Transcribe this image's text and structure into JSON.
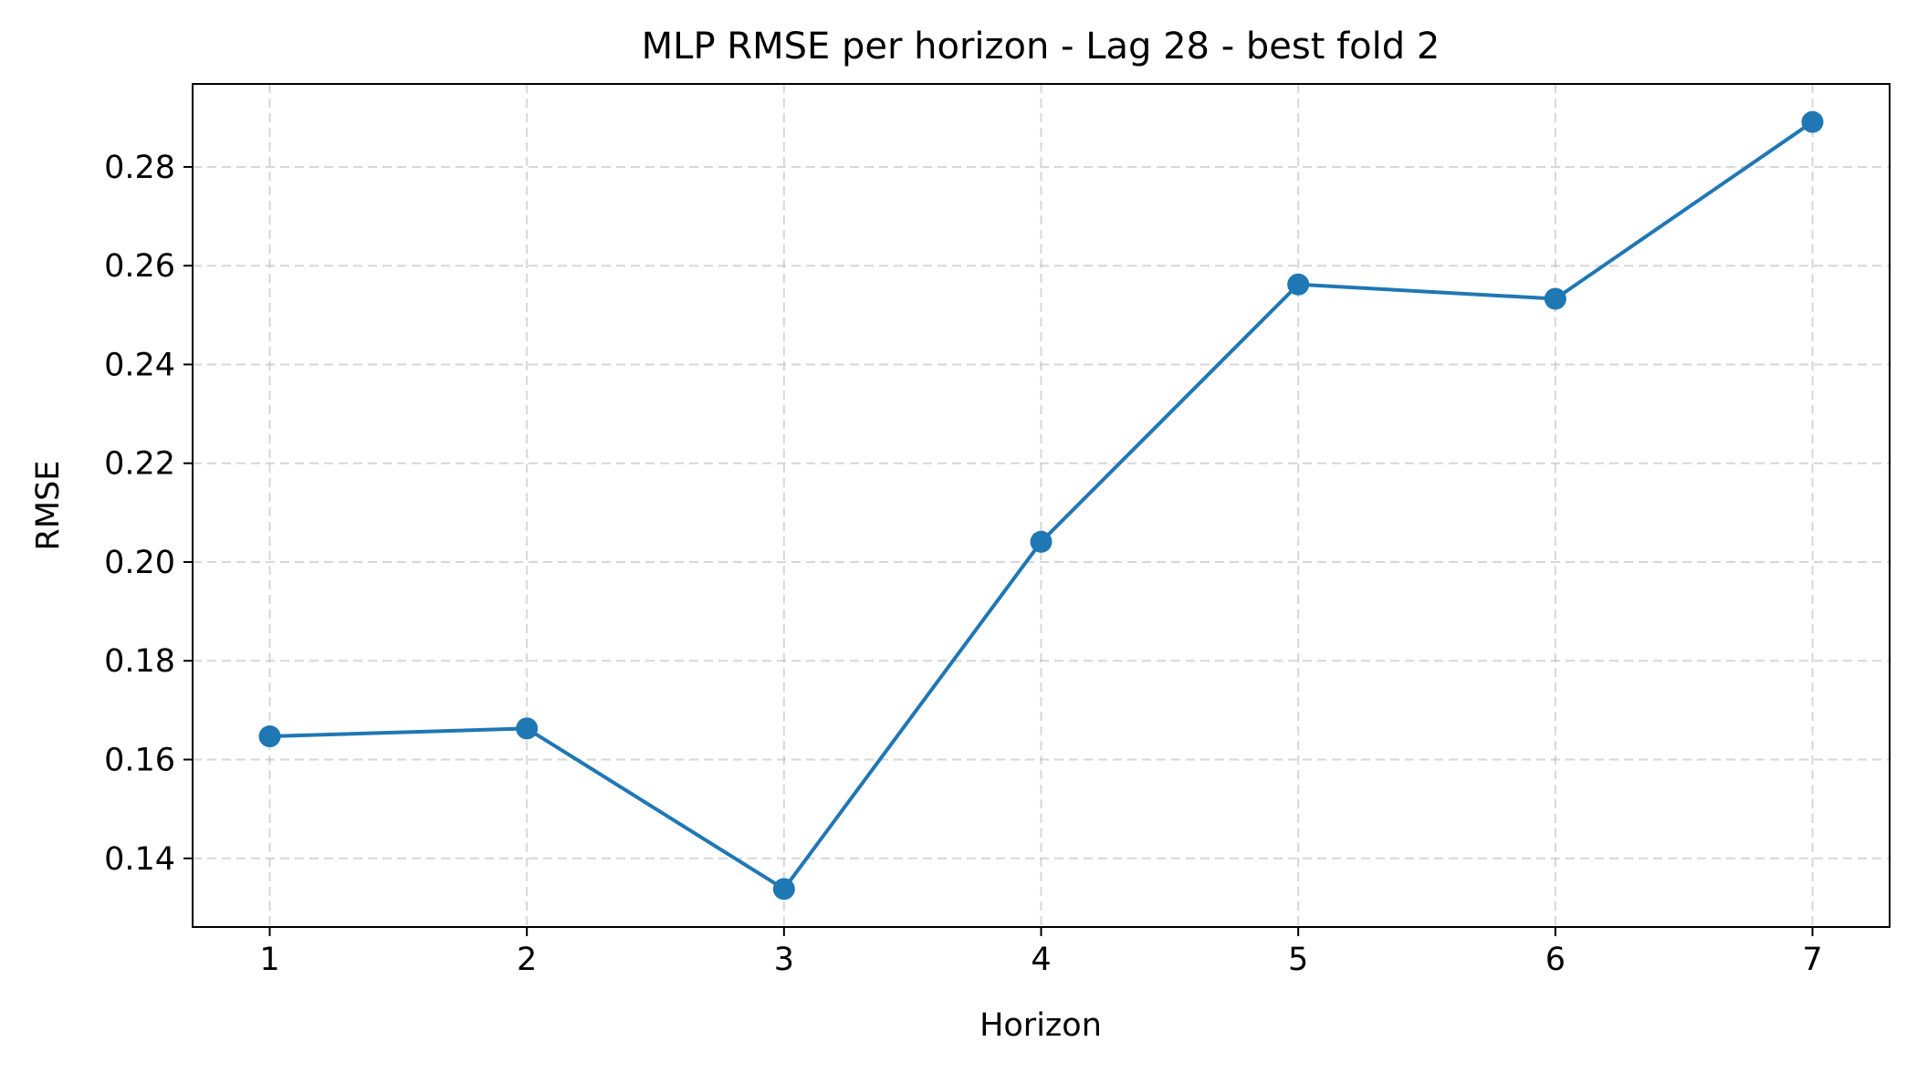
{
  "chart_data": {
    "type": "line",
    "title": "MLP RMSE per horizon - Lag 28 - best fold 2",
    "xlabel": "Horizon",
    "ylabel": "RMSE",
    "x": [
      1,
      2,
      3,
      4,
      5,
      6,
      7
    ],
    "series": [
      {
        "values": [
          0.1647,
          0.1663,
          0.1338,
          0.2041,
          0.2562,
          0.2533,
          0.2891
        ]
      }
    ],
    "xticks": [
      "1",
      "2",
      "3",
      "4",
      "5",
      "6",
      "7"
    ],
    "yticks": [
      "0.14",
      "0.16",
      "0.18",
      "0.20",
      "0.22",
      "0.24",
      "0.26",
      "0.28"
    ],
    "xlim": [
      0.7,
      7.3
    ],
    "ylim": [
      0.1261,
      0.2968
    ],
    "grid": true,
    "color": "#1f77b4"
  }
}
